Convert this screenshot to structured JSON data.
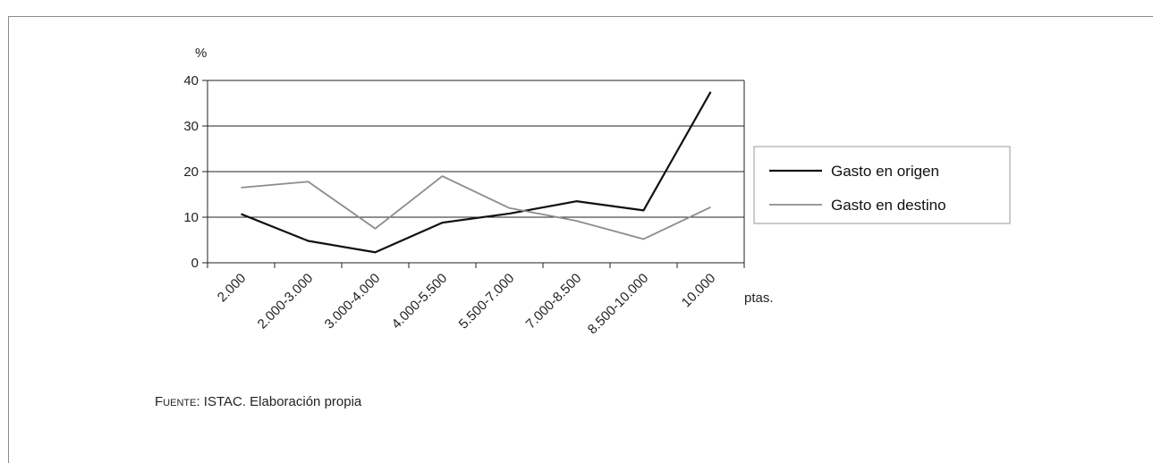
{
  "chart_data": {
    "type": "line",
    "ylabel": "%",
    "xlabel": "ptas.",
    "categories": [
      "2.000",
      "2.000-3.000",
      "3.000-4.000",
      "4.000-5.500",
      "5.500-7.000",
      "7.000-8.500",
      "8.500-10.000",
      "10.000"
    ],
    "y_ticks": [
      0,
      10,
      20,
      30,
      40
    ],
    "ylim": [
      0,
      40
    ],
    "grid": true,
    "legend_position": "right",
    "series": [
      {
        "name": "Gasto en origen",
        "color": "#111111",
        "values": [
          10.7,
          4.8,
          2.3,
          8.8,
          10.8,
          13.5,
          11.5,
          37.5
        ]
      },
      {
        "name": "Gasto en destino",
        "color": "#8c8c8c",
        "values": [
          16.5,
          17.8,
          7.5,
          19.0,
          12.0,
          9.2,
          5.2,
          12.2
        ]
      }
    ]
  },
  "source": {
    "label": "Fuente",
    "text": ": ISTAC. Elaboración propia"
  }
}
